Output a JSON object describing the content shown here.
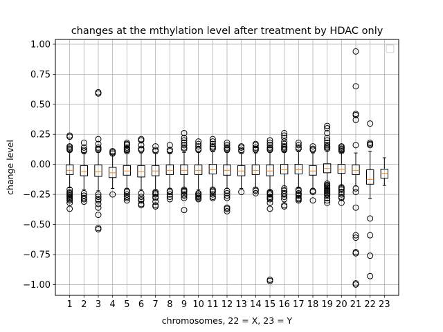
{
  "chart_data": {
    "type": "box",
    "title": "changes at the mthylation level after treatment by HDAC only",
    "xlabel": "chromosomes, 22 = X, 23 = Y",
    "ylabel": "change level",
    "ylim": [
      -1.09,
      1.04
    ],
    "yticks": [
      "1.00",
      "0.75",
      "0.50",
      "0.25",
      "0.00",
      "−0.25",
      "−0.50",
      "−0.75",
      "−1.00"
    ],
    "ytick_values": [
      1.0,
      0.75,
      0.5,
      0.25,
      0.0,
      -0.25,
      -0.5,
      -0.75,
      -1.0
    ],
    "categories": [
      "1",
      "2",
      "3",
      "4",
      "5",
      "6",
      "7",
      "8",
      "9",
      "10",
      "11",
      "12",
      "13",
      "14",
      "15",
      "16",
      "17",
      "18",
      "19",
      "20",
      "21",
      "22",
      "23"
    ],
    "grid": true,
    "legend": "top-right, empty",
    "colors": {
      "box": "#000000",
      "median": "#ff7f0e",
      "grid": "#b0b0b0",
      "flier": "#000000"
    },
    "boxes": [
      {
        "q1": -0.085,
        "median": -0.05,
        "q3": -0.005,
        "whisker_low": -0.195,
        "whisker_high": 0.105,
        "fliers": [
          0.24,
          0.23,
          0.15,
          0.14,
          0.13,
          0.12,
          -0.21,
          -0.23,
          -0.24,
          -0.25,
          -0.26,
          -0.27,
          -0.28,
          -0.29,
          -0.3,
          -0.32,
          -0.37
        ]
      },
      {
        "q1": -0.095,
        "median": -0.06,
        "q3": -0.01,
        "whisker_low": -0.21,
        "whisker_high": 0.095,
        "fliers": [
          0.18,
          0.14,
          0.12,
          0.11,
          -0.24,
          -0.26,
          -0.28,
          -0.29,
          -0.31
        ]
      },
      {
        "q1": -0.1,
        "median": -0.06,
        "q3": -0.005,
        "whisker_low": -0.22,
        "whisker_high": 0.1,
        "fliers": [
          0.6,
          0.59,
          0.21,
          0.17,
          0.14,
          0.13,
          0.12,
          -0.25,
          -0.27,
          -0.29,
          -0.3,
          -0.33,
          -0.36,
          -0.42,
          -0.53,
          -0.54
        ]
      },
      {
        "q1": -0.11,
        "median": -0.07,
        "q3": -0.025,
        "whisker_low": -0.2,
        "whisker_high": 0.08,
        "fliers": [
          0.11,
          0.1,
          0.09,
          -0.25
        ]
      },
      {
        "q1": -0.09,
        "median": -0.055,
        "q3": -0.01,
        "whisker_low": -0.2,
        "whisker_high": 0.1,
        "fliers": [
          0.18,
          0.17,
          0.16,
          0.14,
          0.13,
          0.12,
          0.11,
          -0.22,
          -0.23,
          -0.25,
          -0.27,
          -0.28,
          -0.3
        ]
      },
      {
        "q1": -0.105,
        "median": -0.06,
        "q3": -0.01,
        "whisker_low": -0.21,
        "whisker_high": 0.095,
        "fliers": [
          0.21,
          0.2,
          0.16,
          0.13,
          0.12,
          -0.24,
          -0.27,
          -0.29,
          -0.3,
          -0.33,
          -0.34
        ]
      },
      {
        "q1": -0.095,
        "median": -0.055,
        "q3": -0.01,
        "whisker_low": -0.21,
        "whisker_high": 0.09,
        "fliers": [
          0.15,
          0.12,
          0.11,
          -0.23,
          -0.24,
          -0.25,
          -0.27,
          -0.28,
          -0.31,
          -0.34,
          -0.35
        ]
      },
      {
        "q1": -0.085,
        "median": -0.05,
        "q3": -0.005,
        "whisker_low": -0.2,
        "whisker_high": 0.095,
        "fliers": [
          0.16,
          0.12,
          0.11,
          -0.22,
          -0.23,
          -0.25,
          -0.27,
          -0.29
        ]
      },
      {
        "q1": -0.085,
        "median": -0.05,
        "q3": -0.005,
        "whisker_low": -0.2,
        "whisker_high": 0.1,
        "fliers": [
          0.26,
          0.22,
          0.2,
          0.18,
          0.16,
          0.14,
          0.13,
          -0.21,
          -0.22,
          -0.23,
          -0.25,
          -0.26,
          -0.28,
          -0.38
        ]
      },
      {
        "q1": -0.085,
        "median": -0.05,
        "q3": -0.005,
        "whisker_low": -0.21,
        "whisker_high": 0.1,
        "fliers": [
          0.19,
          0.17,
          0.15,
          0.13,
          0.12,
          -0.24,
          -0.25,
          -0.26,
          -0.27,
          -0.28,
          -0.29
        ]
      },
      {
        "q1": -0.08,
        "median": -0.045,
        "q3": 0.0,
        "whisker_low": -0.19,
        "whisker_high": 0.105,
        "fliers": [
          0.21,
          0.19,
          0.17,
          0.15,
          0.14,
          0.13,
          -0.21,
          -0.22,
          -0.23,
          -0.25,
          -0.27,
          -0.28
        ]
      },
      {
        "q1": -0.09,
        "median": -0.05,
        "q3": -0.005,
        "whisker_low": -0.2,
        "whisker_high": 0.1,
        "fliers": [
          0.18,
          0.16,
          0.14,
          0.13,
          0.12,
          -0.22,
          -0.24,
          -0.26,
          -0.28,
          -0.36,
          -0.37,
          -0.39
        ]
      },
      {
        "q1": -0.095,
        "median": -0.055,
        "q3": -0.01,
        "whisker_low": -0.2,
        "whisker_high": 0.09,
        "fliers": [
          0.15,
          0.14,
          0.12,
          0.11,
          -0.23
        ]
      },
      {
        "q1": -0.085,
        "median": -0.05,
        "q3": -0.005,
        "whisker_low": -0.19,
        "whisker_high": 0.095,
        "fliers": [
          0.17,
          0.16,
          0.14,
          0.13,
          0.12,
          -0.21,
          -0.22,
          -0.24
        ]
      },
      {
        "q1": -0.095,
        "median": -0.055,
        "q3": -0.005,
        "whisker_low": -0.215,
        "whisker_high": 0.1,
        "fliers": [
          0.2,
          0.18,
          0.16,
          0.14,
          0.13,
          0.12,
          -0.23,
          -0.24,
          -0.25,
          -0.27,
          -0.28,
          -0.29,
          -0.32,
          -0.37,
          -0.96,
          -0.97
        ]
      },
      {
        "q1": -0.08,
        "median": -0.045,
        "q3": 0.0,
        "whisker_low": -0.195,
        "whisker_high": 0.105,
        "fliers": [
          0.26,
          0.24,
          0.22,
          0.19,
          0.17,
          0.15,
          0.14,
          0.13,
          0.12,
          -0.2,
          -0.22,
          -0.24,
          -0.25,
          -0.27,
          -0.29,
          -0.34,
          -0.35
        ]
      },
      {
        "q1": -0.08,
        "median": -0.045,
        "q3": 0.0,
        "whisker_low": -0.195,
        "whisker_high": 0.105,
        "fliers": [
          0.18,
          0.16,
          0.14,
          0.13,
          -0.21,
          -0.22,
          -0.24,
          -0.25,
          -0.26,
          -0.28,
          -0.29,
          -0.3
        ]
      },
      {
        "q1": -0.09,
        "median": -0.055,
        "q3": -0.01,
        "whisker_low": -0.2,
        "whisker_high": 0.095,
        "fliers": [
          0.15,
          0.13,
          0.12,
          -0.22,
          -0.23,
          -0.3
        ]
      },
      {
        "q1": -0.07,
        "median": -0.035,
        "q3": 0.005,
        "whisker_low": -0.17,
        "whisker_high": 0.11,
        "fliers": [
          0.32,
          0.3,
          0.26,
          0.22,
          0.2,
          0.18,
          0.16,
          0.15,
          0.14,
          0.13,
          -0.16,
          -0.17,
          -0.18,
          -0.19,
          -0.2,
          -0.21,
          -0.22,
          -0.23,
          -0.24,
          -0.25,
          -0.26,
          -0.28,
          -0.3,
          -0.32
        ]
      },
      {
        "q1": -0.075,
        "median": -0.04,
        "q3": 0.0,
        "whisker_low": -0.18,
        "whisker_high": 0.105,
        "fliers": [
          0.15,
          0.14,
          0.13,
          0.12,
          0.11,
          -0.19,
          -0.2,
          -0.21,
          -0.23,
          -0.25,
          -0.27,
          -0.28,
          -0.32
        ]
      },
      {
        "q1": -0.085,
        "median": -0.05,
        "q3": -0.005,
        "whisker_low": -0.18,
        "whisker_high": 0.095,
        "fliers": [
          0.94,
          0.65,
          0.42,
          0.41,
          0.37,
          0.16,
          -0.2,
          -0.23,
          -0.36,
          -0.59,
          -0.61,
          -0.73,
          -0.74,
          -0.99,
          -1.0
        ]
      },
      {
        "q1": -0.165,
        "median": -0.125,
        "q3": -0.045,
        "whisker_low": -0.285,
        "whisker_high": 0.11,
        "fliers": [
          0.34,
          0.18,
          0.17,
          0.16,
          -0.45,
          -0.59,
          -0.76,
          -0.93
        ]
      },
      {
        "q1": -0.115,
        "median": -0.075,
        "q3": -0.04,
        "whisker_low": -0.175,
        "whisker_high": 0.055,
        "fliers": []
      }
    ]
  }
}
